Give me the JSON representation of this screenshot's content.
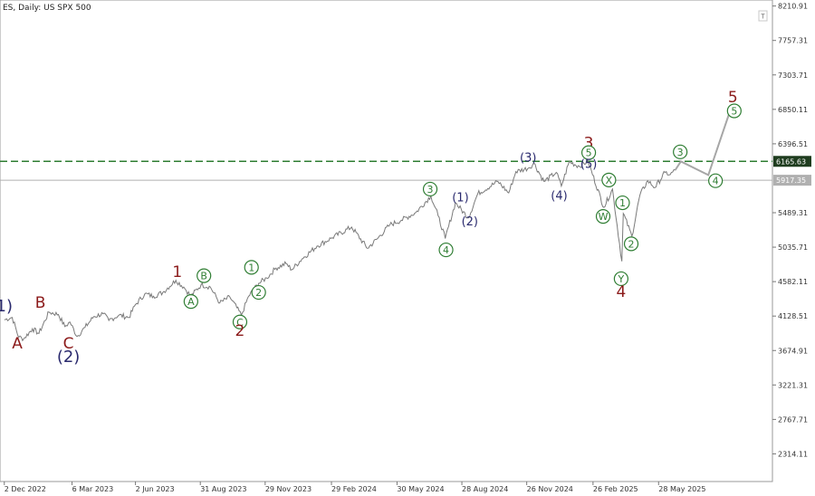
{
  "title": "ES, Daily:  US SPX 500",
  "chart_data": {
    "type": "line",
    "series": [
      {
        "points": [
          [
            "2022-12-02",
            4080
          ],
          [
            "2022-12-13",
            4110
          ],
          [
            "2022-12-22",
            3850
          ],
          [
            "2022-12-29",
            3830
          ],
          [
            "2023-01-10",
            3960
          ],
          [
            "2023-01-19",
            3900
          ],
          [
            "2023-02-02",
            4180
          ],
          [
            "2023-02-15",
            4150
          ],
          [
            "2023-02-24",
            3990
          ],
          [
            "2023-03-03",
            4050
          ],
          [
            "2023-03-13",
            3860
          ],
          [
            "2023-03-24",
            3980
          ],
          [
            "2023-04-05",
            4120
          ],
          [
            "2023-04-18",
            4160
          ],
          [
            "2023-04-26",
            4070
          ],
          [
            "2023-05-10",
            4140
          ],
          [
            "2023-05-24",
            4110
          ],
          [
            "2023-06-02",
            4280
          ],
          [
            "2023-06-15",
            4420
          ],
          [
            "2023-06-27",
            4390
          ],
          [
            "2023-07-10",
            4440
          ],
          [
            "2023-07-28",
            4600
          ],
          [
            "2023-08-08",
            4510
          ],
          [
            "2023-08-18",
            4390
          ],
          [
            "2023-09-01",
            4540
          ],
          [
            "2023-09-14",
            4510
          ],
          [
            "2023-09-27",
            4300
          ],
          [
            "2023-10-11",
            4380
          ],
          [
            "2023-10-27",
            4140
          ],
          [
            "2023-11-06",
            4390
          ],
          [
            "2023-11-20",
            4560
          ],
          [
            "2023-12-01",
            4630
          ],
          [
            "2023-12-14",
            4760
          ],
          [
            "2023-12-28",
            4820
          ],
          [
            "2024-01-05",
            4740
          ],
          [
            "2024-01-19",
            4880
          ],
          [
            "2024-02-09",
            5050
          ],
          [
            "2024-03-01",
            5160
          ],
          [
            "2024-03-28",
            5300
          ],
          [
            "2024-04-19",
            5020
          ],
          [
            "2024-05-03",
            5150
          ],
          [
            "2024-05-20",
            5330
          ],
          [
            "2024-06-05",
            5390
          ],
          [
            "2024-06-25",
            5490
          ],
          [
            "2024-07-16",
            5710
          ],
          [
            "2024-07-26",
            5450
          ],
          [
            "2024-08-05",
            5150
          ],
          [
            "2024-08-19",
            5620
          ],
          [
            "2024-09-06",
            5420
          ],
          [
            "2024-09-19",
            5740
          ],
          [
            "2024-10-17",
            5900
          ],
          [
            "2024-11-01",
            5750
          ],
          [
            "2024-11-11",
            6030
          ],
          [
            "2024-11-29",
            6080
          ],
          [
            "2024-12-06",
            6140
          ],
          [
            "2024-12-20",
            5900
          ],
          [
            "2025-01-06",
            6020
          ],
          [
            "2025-01-13",
            5840
          ],
          [
            "2025-01-24",
            6160
          ],
          [
            "2025-02-07",
            6100
          ],
          [
            "2025-02-19",
            6170
          ],
          [
            "2025-03-13",
            5560
          ],
          [
            "2025-03-25",
            5800
          ],
          [
            "2025-04-07",
            4850
          ],
          [
            "2025-04-09",
            5480
          ],
          [
            "2025-04-21",
            5180
          ],
          [
            "2025-05-02",
            5720
          ],
          [
            "2025-05-13",
            5910
          ],
          [
            "2025-05-23",
            5820
          ],
          [
            "2025-06-06",
            6020
          ],
          [
            "2025-06-13",
            5990
          ],
          [
            "2025-06-20",
            6050
          ]
        ]
      },
      {
        "points": [
          [
            "2025-06-20",
            6050
          ],
          [
            "2025-06-28",
            6165
          ],
          [
            "2025-08-05",
            5985
          ],
          [
            "2025-09-05",
            6850
          ]
        ]
      }
    ],
    "x_tick_labels": [
      "2 Dec 2022",
      "6 Mar 2023",
      "2 Jun 2023",
      "31 Aug 2023",
      "29 Nov 2023",
      "29 Feb 2024",
      "30 May 2024",
      "28 Aug 2024",
      "26 Nov 2024",
      "26 Feb 2025",
      "28 May 2025"
    ],
    "x_tick_dates": [
      "2022-12-02",
      "2023-03-06",
      "2023-06-02",
      "2023-08-31",
      "2023-11-29",
      "2024-02-29",
      "2024-05-30",
      "2024-08-28",
      "2024-11-26",
      "2025-02-26",
      "2025-05-28"
    ],
    "y_tick_labels": [
      "8210.91",
      "7757.31",
      "7303.71",
      "6850.11",
      "6396.51",
      "5489.31",
      "5035.71",
      "4582.11",
      "4128.51",
      "3674.91",
      "3221.31",
      "2767.71",
      "2314.11"
    ],
    "y_tick_values": [
      8210.91,
      7757.31,
      7303.71,
      6850.11,
      6396.51,
      5489.31,
      5035.71,
      4582.11,
      4128.51,
      3674.91,
      3221.31,
      2767.71,
      2314.11
    ],
    "ylim": [
      1950,
      8290
    ],
    "xlim": [
      "2022-11-26",
      "2025-11-02"
    ],
    "resistance_level": {
      "value": 6165.63,
      "label": "6165.63",
      "color": "#2e7d32"
    },
    "current_price": {
      "value": 5917.35,
      "label": "5917.35",
      "color": "#b0b0b0"
    },
    "wave_labels": [
      {
        "text": "1)",
        "date": "2022-12-02",
        "y": 4250,
        "style": "navy-big"
      },
      {
        "text": "A",
        "date": "2022-12-20",
        "y": 3760,
        "style": "red"
      },
      {
        "text": "B",
        "date": "2023-01-21",
        "y": 4300,
        "style": "red"
      },
      {
        "text": "C",
        "date": "2023-03-01",
        "y": 3760,
        "style": "red"
      },
      {
        "text": "(2)",
        "date": "2023-03-01",
        "y": 3580,
        "style": "navy-big"
      },
      {
        "text": "1",
        "date": "2023-07-30",
        "y": 4700,
        "style": "red"
      },
      {
        "text": "A",
        "date": "2023-08-18",
        "y": 4320,
        "style": "green"
      },
      {
        "text": "B",
        "date": "2023-09-05",
        "y": 4660,
        "style": "green"
      },
      {
        "text": "C",
        "date": "2023-10-25",
        "y": 4050,
        "style": "green"
      },
      {
        "text": "2",
        "date": "2023-10-25",
        "y": 3930,
        "style": "red"
      },
      {
        "text": "1",
        "date": "2023-11-10",
        "y": 4770,
        "style": "green"
      },
      {
        "text": "2",
        "date": "2023-11-20",
        "y": 4440,
        "style": "green"
      },
      {
        "text": "3",
        "date": "2024-07-15",
        "y": 5800,
        "style": "green"
      },
      {
        "text": "4",
        "date": "2024-08-06",
        "y": 5000,
        "style": "green"
      },
      {
        "text": "(1)",
        "date": "2024-08-26",
        "y": 5700,
        "style": "navy"
      },
      {
        "text": "(2)",
        "date": "2024-09-08",
        "y": 5380,
        "style": "navy"
      },
      {
        "text": "(3)",
        "date": "2024-11-28",
        "y": 6220,
        "style": "navy"
      },
      {
        "text": "(4)",
        "date": "2025-01-10",
        "y": 5720,
        "style": "navy"
      },
      {
        "text": "3",
        "date": "2025-02-20",
        "y": 6400,
        "style": "red"
      },
      {
        "text": "5",
        "date": "2025-02-20",
        "y": 6280,
        "style": "green"
      },
      {
        "text": "(5)",
        "date": "2025-02-20",
        "y": 6140,
        "style": "navy"
      },
      {
        "text": "X",
        "date": "2025-03-20",
        "y": 5920,
        "style": "green"
      },
      {
        "text": "W",
        "date": "2025-03-12",
        "y": 5440,
        "style": "green"
      },
      {
        "text": "1",
        "date": "2025-04-08",
        "y": 5620,
        "style": "green"
      },
      {
        "text": "2",
        "date": "2025-04-20",
        "y": 5080,
        "style": "green"
      },
      {
        "text": "Y",
        "date": "2025-04-06",
        "y": 4620,
        "style": "green"
      },
      {
        "text": "4",
        "date": "2025-04-06",
        "y": 4440,
        "style": "red"
      },
      {
        "text": "3",
        "date": "2025-06-27",
        "y": 6290,
        "style": "green"
      },
      {
        "text": "4",
        "date": "2025-08-15",
        "y": 5910,
        "style": "green"
      },
      {
        "text": "5",
        "date": "2025-09-08",
        "y": 7000,
        "style": "red"
      },
      {
        "text": "5",
        "date": "2025-09-10",
        "y": 6830,
        "style": "green"
      }
    ],
    "grid": false
  }
}
